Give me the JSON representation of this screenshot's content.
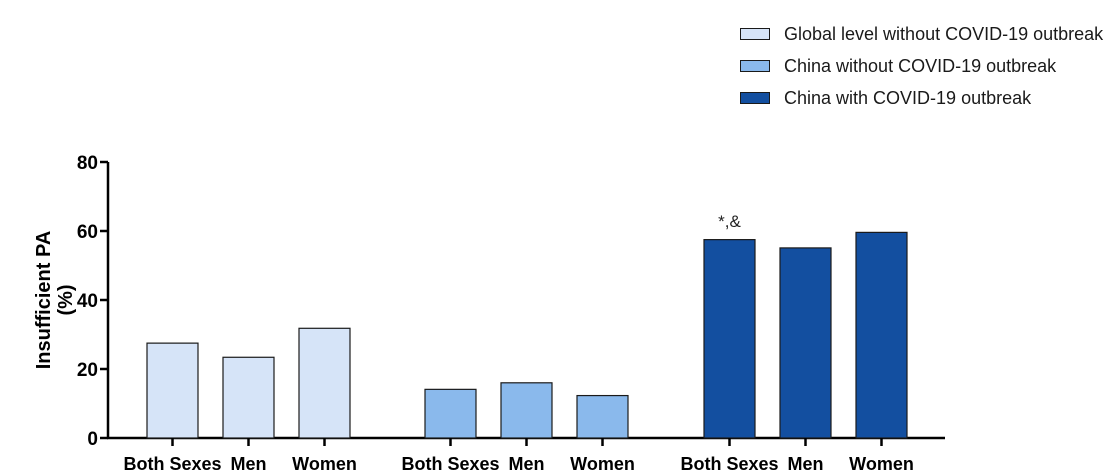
{
  "chart_data": {
    "type": "bar",
    "xlabel": "",
    "ylabel": "Insufficient PA",
    "ylabel_unit": "(%)",
    "ylim": [
      0,
      80
    ],
    "yticks": [
      0,
      20,
      40,
      60,
      80
    ],
    "grid": false,
    "legend_position": "top-right",
    "groups": [
      {
        "name": "Global level without COVID-19 outbreak",
        "color": "#d6e4f8",
        "categories": [
          "Both Sexes",
          "Men",
          "Women"
        ],
        "values": [
          27.5,
          23.4,
          31.8
        ],
        "annotation": ""
      },
      {
        "name": "China without COVID-19 outbreak",
        "color": "#8ab9ec",
        "categories": [
          "Both Sexes",
          "Men",
          "Women"
        ],
        "values": [
          14.1,
          16.0,
          12.3
        ],
        "annotation": ""
      },
      {
        "name": "China with COVID-19 outbreak",
        "color": "#134fa0",
        "categories": [
          "Both Sexes",
          "Men",
          "Women"
        ],
        "values": [
          57.5,
          55.1,
          59.6
        ],
        "annotation": "*,&"
      }
    ]
  }
}
